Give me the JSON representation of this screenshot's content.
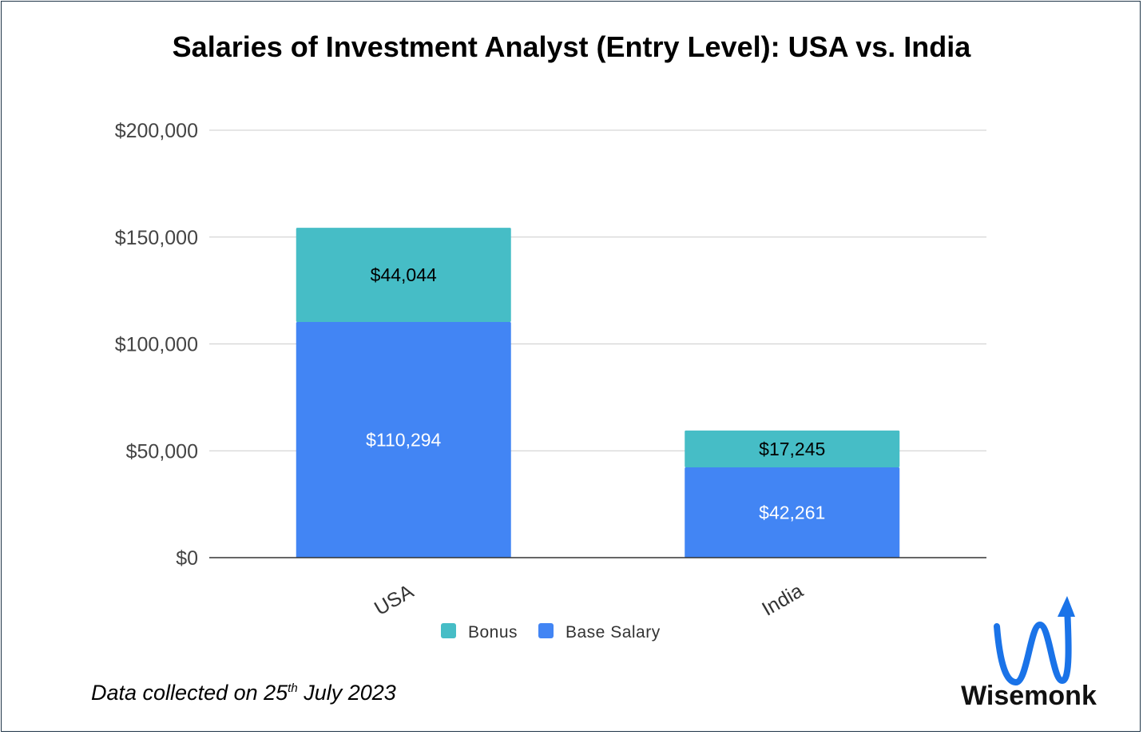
{
  "header": {
    "title": "Salaries of Investment Analyst (Entry Level): USA vs. India"
  },
  "footnote": {
    "prefix": "Data collected on 25",
    "sup": "th",
    "suffix": " July 2023"
  },
  "logo": {
    "name": "Wisemonk",
    "icon": "w-arrow-up-icon",
    "color": "#1a73e8"
  },
  "chart_data": {
    "type": "bar",
    "stacked": true,
    "categories": [
      "USA",
      "India"
    ],
    "series": [
      {
        "name": "Base Salary",
        "values": [
          110294,
          42261
        ],
        "labels": [
          "$110,294",
          "$42,261"
        ],
        "color": "#4285f4",
        "label_color": "#ffffff"
      },
      {
        "name": "Bonus",
        "values": [
          44044,
          17245
        ],
        "labels": [
          "$44,044",
          "$17,245"
        ],
        "color": "#46bdc6",
        "label_color": "#000000"
      }
    ],
    "legend": [
      {
        "name": "Bonus",
        "color": "#46bdc6"
      },
      {
        "name": "Base Salary",
        "color": "#4285f4"
      }
    ],
    "legend_position": "bottom",
    "ylim": [
      0,
      200000
    ],
    "yticks": [
      0,
      50000,
      100000,
      150000,
      200000
    ],
    "ytick_labels": [
      "$0",
      "$50,000",
      "$100,000",
      "$150,000",
      "$200,000"
    ],
    "grid": true
  }
}
